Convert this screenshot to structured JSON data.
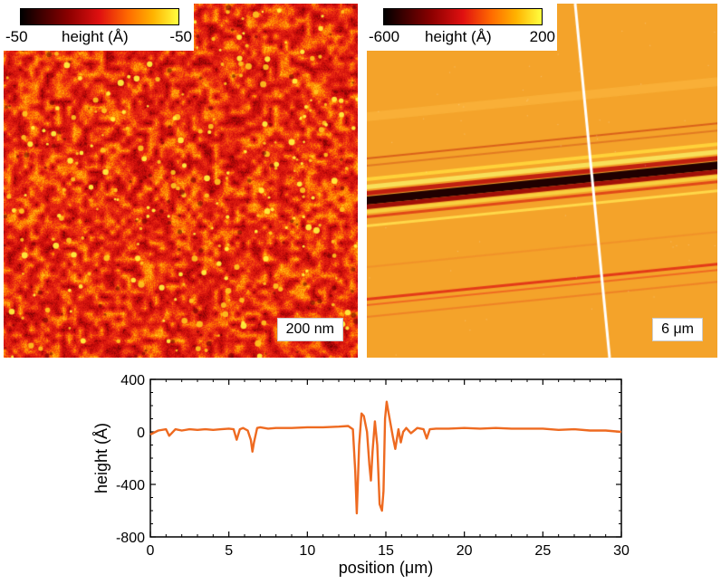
{
  "panels": {
    "left": {
      "colorbar_min": "-50",
      "colorbar_max": "-50",
      "colorbar_label": "height (Å)",
      "scale_bar": "200 nm"
    },
    "right": {
      "colorbar_min": "-600",
      "colorbar_max": "200",
      "colorbar_label": "height (Å)",
      "scale_bar": "6 μm"
    }
  },
  "chart_data": {
    "type": "line",
    "title": "",
    "xlabel": "position (μm)",
    "ylabel": "height (Å)",
    "xlim": [
      0,
      30
    ],
    "ylim": [
      -800,
      400
    ],
    "xticks": [
      0,
      5,
      10,
      15,
      20,
      25,
      30
    ],
    "yticks": [
      400,
      0,
      -400,
      -800
    ],
    "color": "#ee6a20",
    "series": [
      {
        "name": "height profile",
        "x": [
          0,
          0.5,
          1.0,
          1.2,
          1.6,
          2.0,
          2.5,
          3.0,
          3.5,
          4.0,
          4.5,
          5.0,
          5.3,
          5.5,
          5.7,
          5.9,
          6.2,
          6.4,
          6.5,
          6.6,
          6.8,
          7.0,
          7.5,
          8.0,
          9.0,
          10.0,
          11.0,
          12.0,
          12.6,
          12.9,
          13.05,
          13.15,
          13.3,
          13.45,
          13.6,
          13.8,
          13.95,
          14.05,
          14.15,
          14.3,
          14.45,
          14.6,
          14.75,
          14.85,
          14.95,
          15.05,
          15.15,
          15.3,
          15.45,
          15.6,
          15.8,
          15.95,
          16.1,
          16.3,
          16.6,
          17.0,
          17.4,
          17.6,
          17.8,
          18.2,
          19.0,
          20.0,
          21.0,
          22.0,
          23.0,
          24.0,
          25.0,
          26.0,
          27.0,
          28.0,
          29.0,
          30.0
        ],
        "y": [
          -20,
          10,
          20,
          -30,
          20,
          10,
          20,
          15,
          20,
          15,
          20,
          25,
          20,
          -60,
          20,
          30,
          10,
          -60,
          -150,
          -80,
          30,
          35,
          25,
          30,
          30,
          35,
          35,
          40,
          45,
          20,
          -300,
          -620,
          -100,
          140,
          120,
          0,
          -250,
          -370,
          -150,
          80,
          -100,
          -550,
          -600,
          -450,
          100,
          230,
          160,
          60,
          -40,
          -130,
          20,
          -80,
          0,
          30,
          -10,
          30,
          20,
          -50,
          20,
          25,
          25,
          30,
          25,
          30,
          25,
          25,
          25,
          15,
          20,
          10,
          10,
          0
        ]
      }
    ]
  }
}
